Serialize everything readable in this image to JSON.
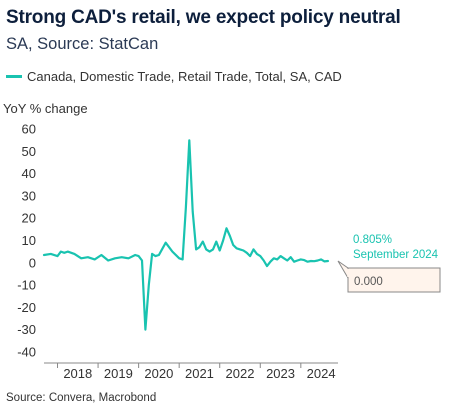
{
  "chart_data": {
    "type": "line",
    "title": "Strong CAD's retail, we expect policy neutral",
    "subtitle": "SA, Source: StatCan",
    "ylabel": "YoY % change",
    "source": "Source: Convera, Macrobond",
    "ylim": [
      -45,
      65
    ],
    "yticks": [
      60,
      50,
      40,
      30,
      20,
      10,
      0,
      -10,
      -20,
      -30,
      -40
    ],
    "xlim": [
      "2017-09",
      "2024-12"
    ],
    "xticks": [
      "2018",
      "2019",
      "2020",
      "2021",
      "2022",
      "2023",
      "2024"
    ],
    "grid": false,
    "legend_position": "top-left",
    "series": [
      {
        "name": "Canada, Domestic Trade, Retail Trade, Total, SA, CAD",
        "color": "#19c3b0",
        "x": [
          "2017-09",
          "2017-11",
          "2018-01",
          "2018-02",
          "2018-03",
          "2018-04",
          "2018-06",
          "2018-08",
          "2018-10",
          "2018-12",
          "2019-02",
          "2019-04",
          "2019-06",
          "2019-08",
          "2019-10",
          "2019-12",
          "2020-01",
          "2020-02",
          "2020-03",
          "2020-04",
          "2020-05",
          "2020-06",
          "2020-07",
          "2020-09",
          "2020-11",
          "2021-01",
          "2021-02",
          "2021-03",
          "2021-04",
          "2021-05",
          "2021-06",
          "2021-07",
          "2021-08",
          "2021-09",
          "2021-10",
          "2021-11",
          "2021-12",
          "2022-01",
          "2022-02",
          "2022-03",
          "2022-04",
          "2022-05",
          "2022-06",
          "2022-07",
          "2022-08",
          "2022-09",
          "2022-10",
          "2022-11",
          "2022-12",
          "2023-01",
          "2023-02",
          "2023-03",
          "2023-04",
          "2023-05",
          "2023-06",
          "2023-07",
          "2023-08",
          "2023-09",
          "2023-10",
          "2023-11",
          "2023-12",
          "2024-01",
          "2024-02",
          "2024-03",
          "2024-04",
          "2024-05",
          "2024-06",
          "2024-07",
          "2024-08",
          "2024-09"
        ],
        "values": [
          3.5,
          4.0,
          3.0,
          5.0,
          4.5,
          5.0,
          4.0,
          2.0,
          2.5,
          1.5,
          3.5,
          1.0,
          2.0,
          2.5,
          2.0,
          3.5,
          3.0,
          1.0,
          -30.0,
          -10.0,
          4.0,
          3.0,
          3.5,
          9.0,
          5.0,
          2.0,
          1.5,
          25.0,
          55.0,
          23.0,
          6.0,
          7.0,
          9.5,
          6.0,
          5.0,
          6.0,
          9.5,
          5.5,
          10.0,
          15.5,
          12.0,
          8.0,
          6.5,
          6.0,
          5.5,
          4.5,
          3.0,
          6.0,
          4.0,
          3.0,
          1.0,
          -1.5,
          0.5,
          2.0,
          1.5,
          3.0,
          2.0,
          1.0,
          2.5,
          0.5,
          1.0,
          1.5,
          1.2,
          0.5,
          0.8,
          0.7,
          1.0,
          1.5,
          0.6,
          0.805
        ]
      }
    ],
    "annotations": [
      {
        "value_label": "0.805%",
        "date_label": "September 2024"
      },
      {
        "box_label": "0.000"
      }
    ]
  }
}
